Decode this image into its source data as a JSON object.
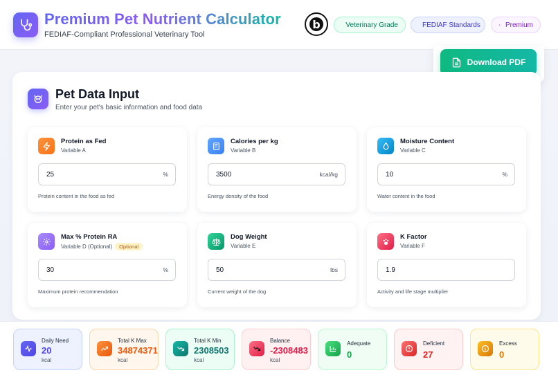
{
  "header": {
    "title": "Premium Pet Nutrient Calculator",
    "subtitle": "FEDIAF-Compliant Professional Veterinary Tool",
    "seal_icon": "badge-b-icon",
    "pills": {
      "vet": "Veterinary Grade",
      "fediaf": "FEDIAF Standards",
      "premium": "Premium"
    },
    "download_label": "Download PDF"
  },
  "section": {
    "title": "Pet Data Input",
    "subtitle": "Enter your pet's basic information and food data"
  },
  "fields": [
    {
      "title": "Protein as Fed",
      "variable": "Variable A",
      "value": "25",
      "unit": "%",
      "help": "Protein content in the food as fed",
      "icon": "bolt-icon",
      "color": "#f97316"
    },
    {
      "title": "Calories per kg",
      "variable": "Variable B",
      "value": "3500",
      "unit": "kcal/kg",
      "help": "Energy density of the food",
      "icon": "calculator-icon",
      "color": "#3b82f6"
    },
    {
      "title": "Moisture Content",
      "variable": "Variable C",
      "value": "10",
      "unit": "%",
      "help": "Water content in the food",
      "icon": "droplet-icon",
      "color": "#0ea5e9"
    },
    {
      "title": "Max % Protein RA",
      "variable": "Variable D (Optional)",
      "optional": "Optional",
      "value": "30",
      "unit": "%",
      "help": "Maximum protein recommendation",
      "icon": "gear-icon",
      "color": "#8b5cf6"
    },
    {
      "title": "Dog Weight",
      "variable": "Variable E",
      "value": "50",
      "unit": "lbs",
      "help": "Current weight of the dog",
      "icon": "scale-icon",
      "color": "#10b981"
    },
    {
      "title": "K Factor",
      "variable": "Variable F",
      "value": "1.9",
      "unit": "",
      "help": "Activity and life stage multiplier",
      "icon": "paw-icon",
      "color": "#f43f5e"
    }
  ],
  "stats": [
    {
      "label": "Daily Need",
      "value": "20",
      "unit": "kcal",
      "icon": "pulse-icon",
      "color": "#4f46e5"
    },
    {
      "label": "Total K Max",
      "value": "34874371",
      "unit": "kcal",
      "icon": "trend-up-icon",
      "color": "#ea580c"
    },
    {
      "label": "Total K Min",
      "value": "2308503",
      "unit": "kcal",
      "icon": "trend-down-icon",
      "color": "#0f766e"
    },
    {
      "label": "Balance",
      "value": "-2308483",
      "unit": "kcal",
      "icon": "trend-arrow-icon",
      "color": "#e11d48"
    },
    {
      "label": "Adequate",
      "value": "0",
      "icon": "bar-chart-icon",
      "color": "#16a34a"
    },
    {
      "label": "Deficient",
      "value": "27",
      "icon": "alert-circle-icon",
      "color": "#dc2626"
    },
    {
      "label": "Excess",
      "value": "0",
      "icon": "info-circle-icon",
      "color": "#d97706"
    }
  ]
}
